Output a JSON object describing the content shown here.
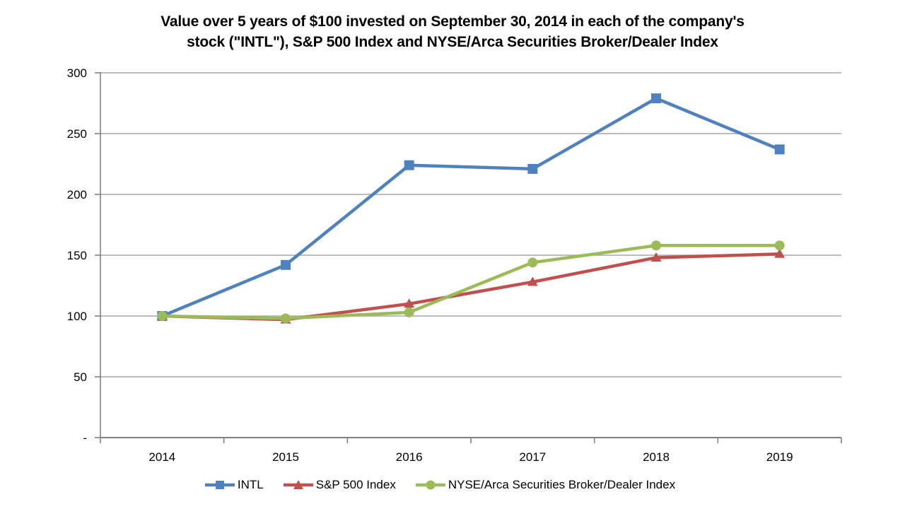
{
  "chart_data": {
    "type": "line",
    "title": "Value over 5 years of $100 invested on September 30, 2014 in each of the company's stock (\"INTL\"), S&P 500 Index and NYSE/Arca Securities Broker/Dealer Index",
    "title_lines": [
      "Value over 5 years of $100 invested on September 30, 2014 in each of the company's",
      "stock (\"INTL\"), S&P 500 Index and NYSE/Arca Securities Broker/Dealer Index"
    ],
    "categories": [
      "2014",
      "2015",
      "2016",
      "2017",
      "2018",
      "2019"
    ],
    "series": [
      {
        "name": "INTL",
        "color": "#4F81BD",
        "marker": "square",
        "values": [
          100,
          142,
          224,
          221,
          279,
          237
        ]
      },
      {
        "name": "S&P 500 Index",
        "color": "#C0504D",
        "marker": "triangle",
        "values": [
          100,
          97,
          110,
          128,
          148,
          151
        ]
      },
      {
        "name": "NYSE/Arca Securities Broker/Dealer Index",
        "color": "#9BBB59",
        "marker": "circle",
        "values": [
          100,
          98,
          103,
          144,
          158,
          158
        ]
      }
    ],
    "xlabel": "",
    "ylabel": "",
    "ylim": [
      0,
      300
    ],
    "ytick_step": 50,
    "ytick_labels": [
      "-",
      "50",
      "100",
      "150",
      "200",
      "250",
      "300"
    ],
    "zero_label": "-",
    "grid": true,
    "legend_position": "bottom",
    "colors": {
      "gridline": "#A6A6A6",
      "axis": "#808080",
      "text": "#000000",
      "background": "#FFFFFF"
    }
  }
}
